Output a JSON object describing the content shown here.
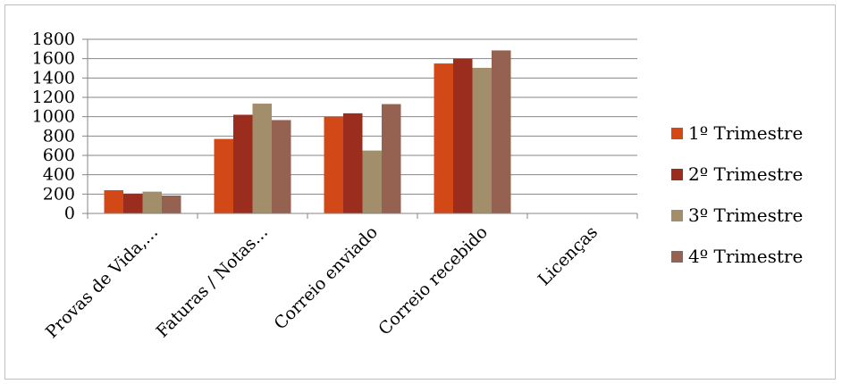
{
  "chart_data": {
    "type": "bar",
    "title": "",
    "xlabel": "",
    "ylabel": "",
    "ylim": [
      0,
      1800
    ],
    "yticks": [
      0,
      200,
      400,
      600,
      800,
      1000,
      1200,
      1400,
      1600,
      1800
    ],
    "grid": "horizontal",
    "legend": "right",
    "categories": [
      "Provas de Vida,...",
      "Faturas / Notas...",
      "Correio enviado",
      "Correio recebido",
      "Licenças"
    ],
    "series": [
      {
        "name": "1º Trimestre",
        "color": "#d34817",
        "values": [
          240,
          770,
          1000,
          1550,
          0
        ]
      },
      {
        "name": "2º Trimestre",
        "color": "#9b2d1f",
        "values": [
          205,
          1020,
          1035,
          1600,
          0
        ]
      },
      {
        "name": "3º Trimestre",
        "color": "#a28e6a",
        "values": [
          225,
          1135,
          650,
          1505,
          0
        ]
      },
      {
        "name": "4º Trimestre",
        "color": "#956251",
        "values": [
          185,
          965,
          1130,
          1685,
          0
        ]
      }
    ]
  }
}
